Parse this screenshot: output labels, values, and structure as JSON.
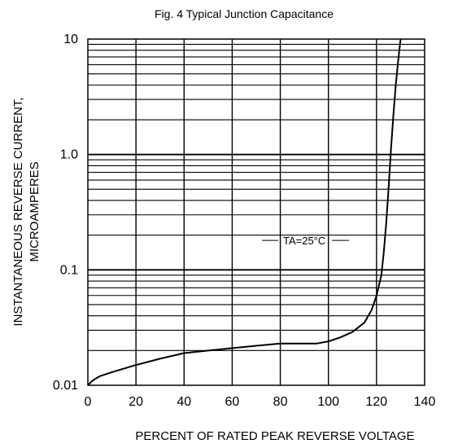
{
  "chart_data": {
    "type": "line",
    "title": "Fig. 4   Typical Junction Capacitance",
    "xlabel": "PERCENT OF RATED PEAK REVERSE VOLTAGE",
    "ylabel_line1": "INSTANTANEOUS REVERSE CURRENT,",
    "ylabel_line2": "MICROAMPERES",
    "xlim": [
      0,
      140
    ],
    "ylim": [
      0.01,
      10
    ],
    "yscale": "log",
    "x_ticks": [
      0,
      20,
      40,
      60,
      80,
      100,
      120,
      140
    ],
    "y_ticks": [
      0.01,
      0.1,
      1,
      10
    ],
    "x_tick_labels": [
      "0",
      "20",
      "40",
      "60",
      "80",
      "100",
      "120",
      "140"
    ],
    "y_tick_labels": [
      "0.01",
      "0.1",
      "1.0",
      "10"
    ],
    "grid": true,
    "annotation": "TA=25°C",
    "series": [
      {
        "x": [
          0,
          2,
          5,
          10,
          20,
          30,
          40,
          50,
          60,
          70,
          80,
          90,
          95,
          100,
          105,
          110,
          115,
          118,
          120,
          122,
          123,
          124,
          125,
          126,
          127,
          128,
          129,
          130
        ],
        "y": [
          0.01,
          0.011,
          0.012,
          0.013,
          0.015,
          0.017,
          0.019,
          0.02,
          0.021,
          0.022,
          0.023,
          0.023,
          0.023,
          0.024,
          0.026,
          0.029,
          0.035,
          0.045,
          0.06,
          0.09,
          0.14,
          0.25,
          0.5,
          1.1,
          2.2,
          4.0,
          6.5,
          10
        ]
      }
    ]
  }
}
